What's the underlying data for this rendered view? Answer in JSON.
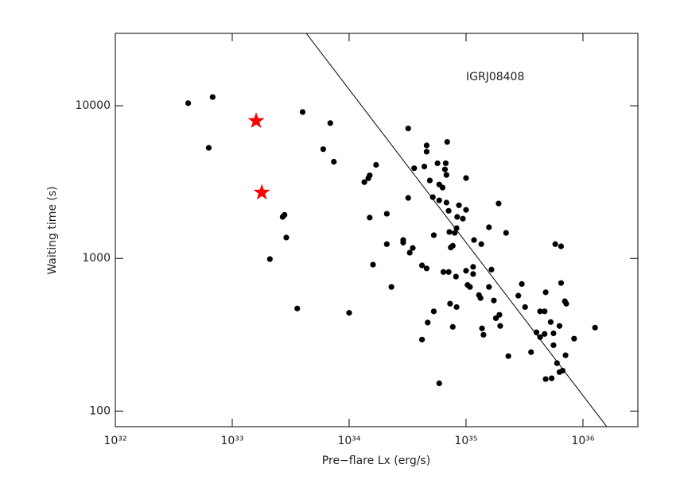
{
  "chart_data": {
    "type": "scatter",
    "annotation": "IGRJ08408",
    "x_label": "Pre−flare Lx (erg/s)",
    "y_label": "Waiting time (s)",
    "log_x": true,
    "log_y": true,
    "grid": false,
    "xlim": [
      1e+32,
      2.95e+36
    ],
    "ylim": [
      79,
      29800
    ],
    "xticks": [
      {
        "value": 1e+32,
        "label": "10³²"
      },
      {
        "value": 1e+33,
        "label": "10³³"
      },
      {
        "value": 1e+34,
        "label": "10³⁴"
      },
      {
        "value": 1e+35,
        "label": "10³⁵"
      },
      {
        "value": 1e+36,
        "label": "10³⁶"
      }
    ],
    "yticks": [
      100,
      1000,
      10000
    ],
    "series": [
      {
        "color": "#000000",
        "marker": "circle",
        "x": [
          4.2e+32,
          6.8e+32,
          6.3e+32,
          4e+33,
          6.9e+33,
          6e+33,
          7.4e+33,
          2.8e+33,
          2.7e+33,
          2.9e+33,
          2.1e+33,
          3.6e+33,
          1e+34,
          1.7e+34,
          1.5e+34,
          1.46e+34,
          1.35e+34,
          1.5e+34,
          2.1e+34,
          1.6e+34,
          2.3e+34,
          2.1e+34,
          2.9e+34,
          2.9e+34,
          3.2e+34,
          3.2e+34,
          3.5e+34,
          3.3e+34,
          3.6e+34,
          4.6e+34,
          4.6e+34,
          4.4e+34,
          4.9e+34,
          5.7e+34,
          6.7e+34,
          6.9e+34,
          6.6e+34,
          6.8e+34,
          5.9e+34,
          6.3e+34,
          5.2e+34,
          5.9e+34,
          6.8e+34,
          7.1e+34,
          8.7e+34,
          1e+35,
          1e+35,
          8.4e+34,
          9.4e+34,
          7.2e+34,
          8e+34,
          8.3e+34,
          7.7e+34,
          7.4e+34,
          5.3e+34,
          4.2e+34,
          4.6e+34,
          6.4e+34,
          7.1e+34,
          8.2e+34,
          1e+35,
          1.15e+35,
          1.15e+35,
          1.03e+35,
          1.08e+35,
          1.17e+35,
          1.35e+35,
          1.57e+35,
          1.9e+35,
          2.2e+35,
          1.65e+35,
          1.57e+35,
          1.29e+35,
          1.33e+35,
          1.73e+35,
          7.3e+34,
          8.3e+34,
          5.3e+34,
          4.7e+34,
          4.2e+34,
          7.7e+34,
          1.37e+35,
          1.41e+35,
          1.8e+35,
          1.93e+35,
          1.96e+35,
          2.3e+35,
          5.9e+34,
          2.8e+35,
          3e+35,
          3.2e+35,
          3.6e+35,
          4e+35,
          4.3e+35,
          4.7e+35,
          4.3e+35,
          4.7e+35,
          4.8e+35,
          5.3e+35,
          5.6e+35,
          5.6e+35,
          6e+35,
          6.3e+35,
          6.7e+35,
          5.4e+35,
          4.8e+35,
          6.3e+35,
          5.8e+35,
          6.5e+35,
          6.5e+35,
          7e+35,
          7.2e+35,
          7.1e+35,
          8.4e+35,
          1.27e+36
        ],
        "values": [
          10400,
          11400,
          5300,
          9100,
          7700,
          5200,
          4300,
          1930,
          1870,
          1370,
          990,
          470,
          440,
          4100,
          3500,
          3350,
          3160,
          1850,
          1960,
          910,
          650,
          1240,
          1320,
          1270,
          7100,
          2490,
          1170,
          1090,
          3900,
          5500,
          5000,
          4000,
          3240,
          4200,
          4200,
          5800,
          3830,
          3520,
          3050,
          2910,
          2520,
          2400,
          2320,
          2050,
          2230,
          2080,
          3360,
          1870,
          1820,
          1490,
          1470,
          1580,
          1210,
          1180,
          1420,
          900,
          860,
          815,
          815,
          760,
          830,
          880,
          790,
          670,
          650,
          1320,
          1240,
          1600,
          2290,
          1470,
          845,
          650,
          575,
          550,
          530,
          505,
          480,
          450,
          380,
          294,
          356,
          348,
          316,
          406,
          427,
          361,
          229,
          152,
          570,
          680,
          480,
          243,
          328,
          305,
          320,
          450,
          450,
          600,
          383,
          323,
          270,
          206,
          180,
          184,
          164,
          162,
          361,
          1240,
          1200,
          690,
          524,
          505,
          232,
          298,
          352
        ]
      },
      {
        "color": "#ff0000",
        "marker": "star",
        "x": [
          1.6e+33,
          1.79e+33
        ],
        "values": [
          7950,
          2700
        ]
      },
      {
        "color": "#000000",
        "marker": "line",
        "x": [
          4.3e+33,
          1.6e+36
        ],
        "values": [
          29800,
          79
        ]
      }
    ]
  }
}
